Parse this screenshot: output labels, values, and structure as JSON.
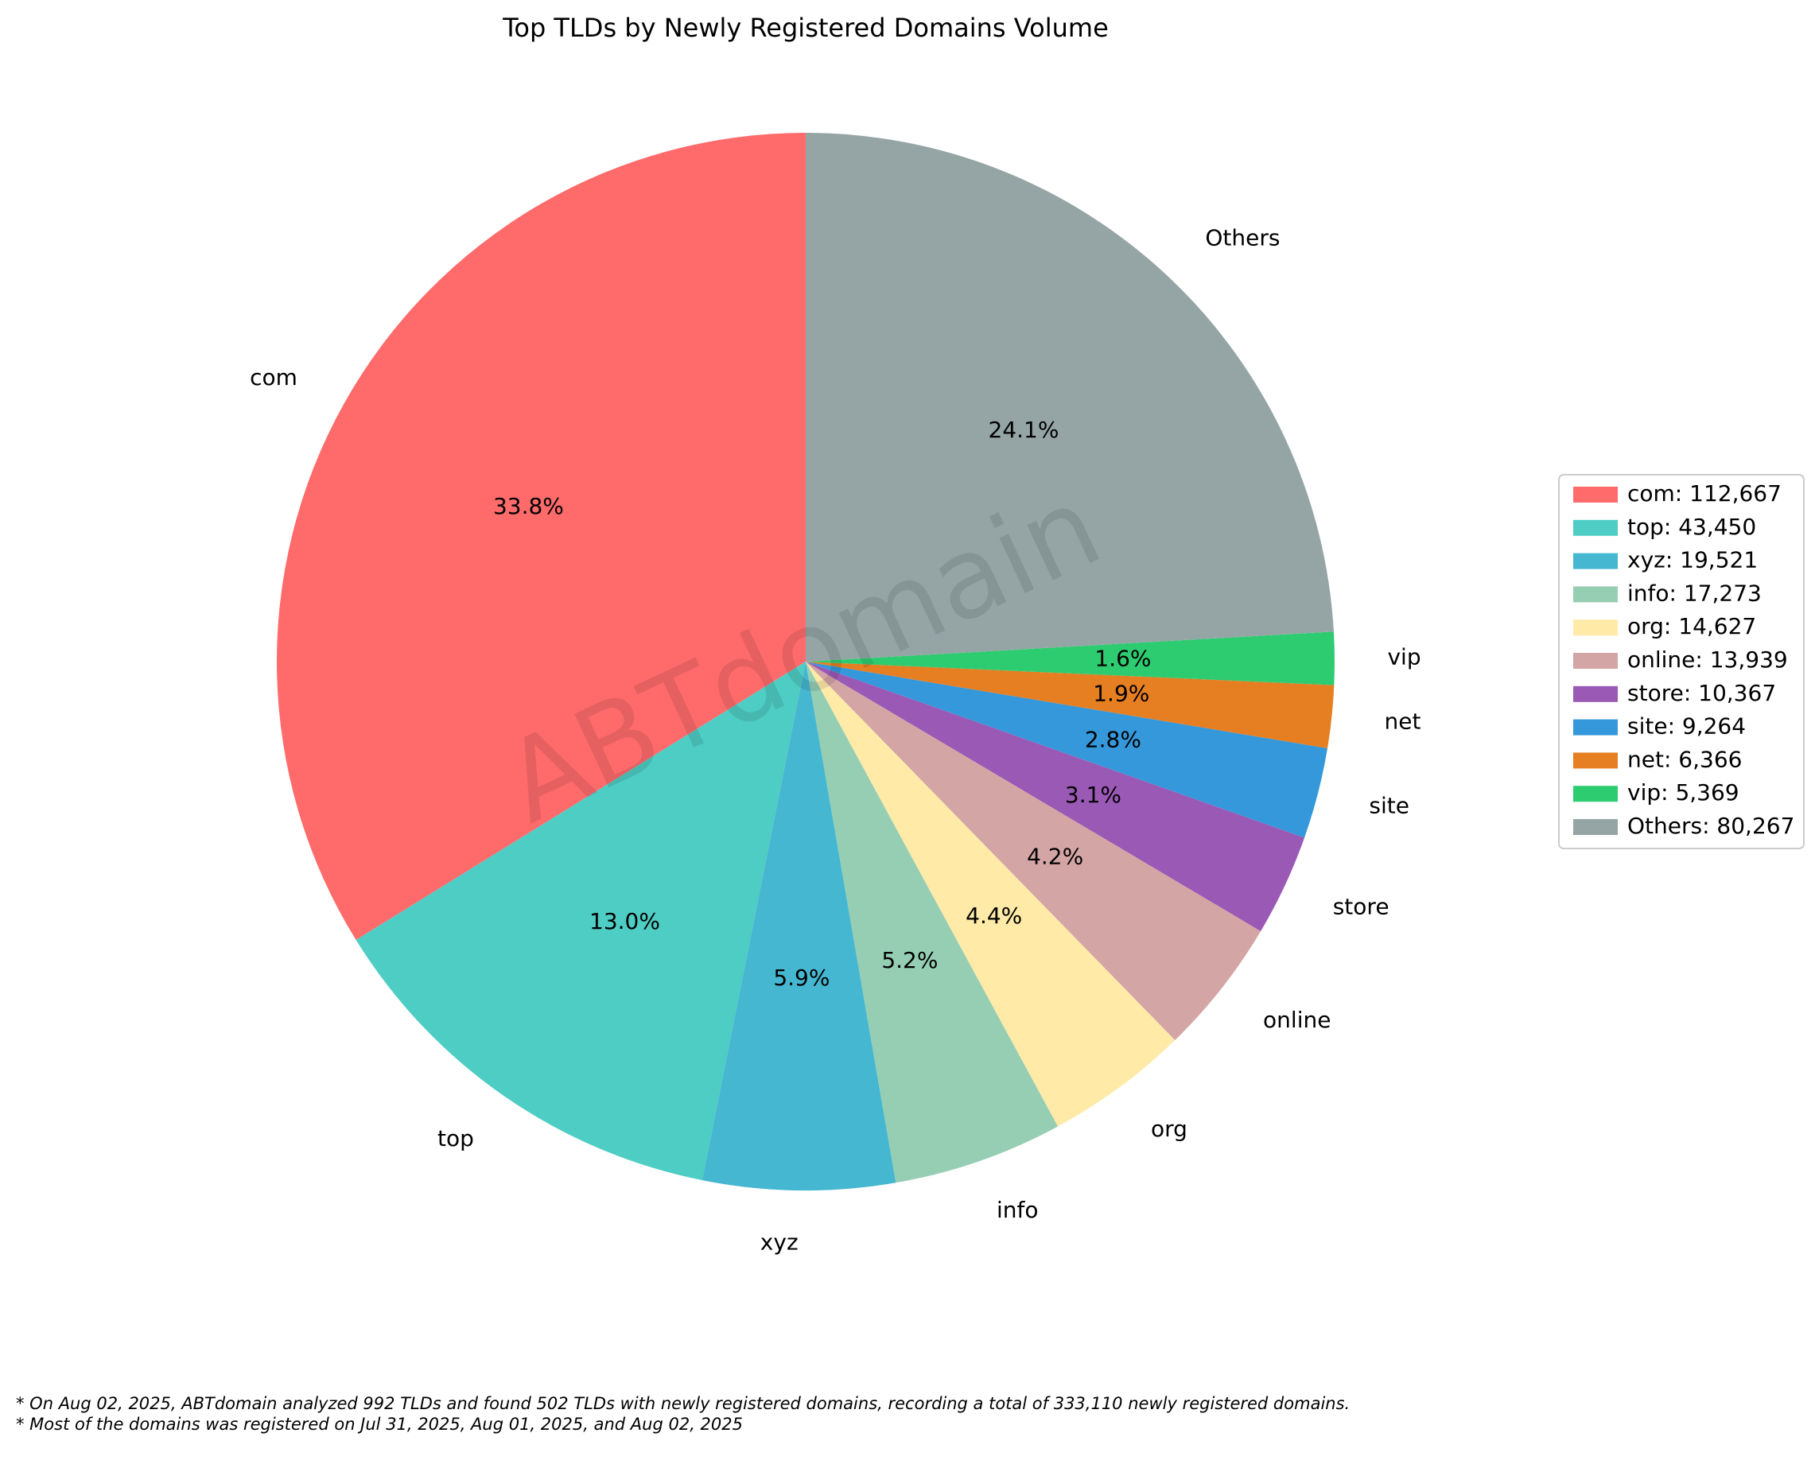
{
  "chart_data": {
    "type": "pie",
    "title": "Top TLDs by Newly Registered Domains Volume",
    "start_angle_deg": 90,
    "direction": "counterclockwise",
    "slices": [
      {
        "label": "com",
        "value": 112667,
        "pct_label": "33.8%",
        "legend_label": "com: 112,667",
        "color": "#FF6B6B"
      },
      {
        "label": "top",
        "value": 43450,
        "pct_label": "13.0%",
        "legend_label": "top: 43,450",
        "color": "#4ECDC4"
      },
      {
        "label": "xyz",
        "value": 19521,
        "pct_label": "5.9%",
        "legend_label": "xyz: 19,521",
        "color": "#45B7D1"
      },
      {
        "label": "info",
        "value": 17273,
        "pct_label": "5.2%",
        "legend_label": "info: 17,273",
        "color": "#96CEB4"
      },
      {
        "label": "org",
        "value": 14627,
        "pct_label": "4.4%",
        "legend_label": "org: 14,627",
        "color": "#FFEAA7"
      },
      {
        "label": "online",
        "value": 13939,
        "pct_label": "4.2%",
        "legend_label": "online: 13,939",
        "color": "#D4A5A5"
      },
      {
        "label": "store",
        "value": 10367,
        "pct_label": "3.1%",
        "legend_label": "store: 10,367",
        "color": "#9B59B6"
      },
      {
        "label": "site",
        "value": 9264,
        "pct_label": "2.8%",
        "legend_label": "site: 9,264",
        "color": "#3498DB"
      },
      {
        "label": "net",
        "value": 6366,
        "pct_label": "1.9%",
        "legend_label": "net: 6,366",
        "color": "#E67E22"
      },
      {
        "label": "vip",
        "value": 5369,
        "pct_label": "1.6%",
        "legend_label": "vip: 5,369",
        "color": "#2ECC71"
      },
      {
        "label": "Others",
        "value": 80267,
        "pct_label": "24.1%",
        "legend_label": "Others: 80,267",
        "color": "#95A5A6"
      }
    ],
    "legend_placement": "center-right",
    "watermark": "ABTdomain",
    "footnotes": [
      "* On Aug 02, 2025, ABTdomain analyzed 992 TLDs and found 502 TLDs with newly registered domains, recording a total of 333,110 newly registered domains.",
      "* Most of the domains was registered on Jul 31, 2025, Aug 01, 2025, and Aug 02, 2025"
    ]
  }
}
